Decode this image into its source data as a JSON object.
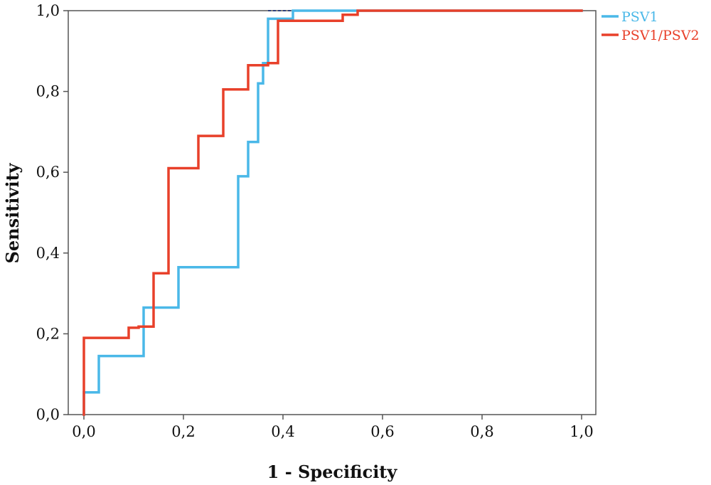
{
  "chart_data": {
    "type": "line",
    "title": "",
    "xlabel": "1 - Specificity",
    "ylabel": "Sensitivity",
    "xlim": [
      0,
      1
    ],
    "ylim": [
      0,
      1
    ],
    "x_ticks": [
      "0,0",
      "0,2",
      "0,4",
      "0,6",
      "0,8",
      "1,0"
    ],
    "y_ticks": [
      "0,0",
      "0,2",
      "0,4",
      "0,6",
      "0,8",
      "1,0"
    ],
    "grid": false,
    "legend_position": "top-right",
    "reference_line": {
      "x": [
        0.37,
        1.0
      ],
      "y": [
        1.0,
        1.0
      ],
      "color": "#2c3e7a",
      "style": "dashed"
    },
    "series": [
      {
        "name": "PSV1",
        "color": "#4ab8e8",
        "x": [
          0.0,
          0.0,
          0.03,
          0.03,
          0.12,
          0.12,
          0.19,
          0.19,
          0.31,
          0.31,
          0.33,
          0.33,
          0.35,
          0.35,
          0.36,
          0.36,
          0.37,
          0.37,
          0.42,
          0.42,
          0.53,
          1.0
        ],
        "y": [
          0.0,
          0.055,
          0.055,
          0.145,
          0.145,
          0.265,
          0.265,
          0.365,
          0.365,
          0.59,
          0.59,
          0.675,
          0.675,
          0.82,
          0.82,
          0.87,
          0.87,
          0.98,
          0.98,
          1.0,
          1.0,
          1.0
        ]
      },
      {
        "name": "PSV1/PSV2",
        "color": "#e8402a",
        "x": [
          0.0,
          0.0,
          0.0,
          0.09,
          0.09,
          0.11,
          0.11,
          0.14,
          0.14,
          0.17,
          0.17,
          0.23,
          0.23,
          0.28,
          0.28,
          0.33,
          0.33,
          0.37,
          0.37,
          0.39,
          0.39,
          0.52,
          0.52,
          0.55,
          0.55,
          1.0
        ],
        "y": [
          0.0,
          0.055,
          0.19,
          0.19,
          0.215,
          0.215,
          0.218,
          0.218,
          0.35,
          0.35,
          0.61,
          0.61,
          0.69,
          0.69,
          0.805,
          0.805,
          0.865,
          0.865,
          0.87,
          0.87,
          0.975,
          0.975,
          0.99,
          0.99,
          1.0,
          1.0
        ]
      }
    ]
  }
}
